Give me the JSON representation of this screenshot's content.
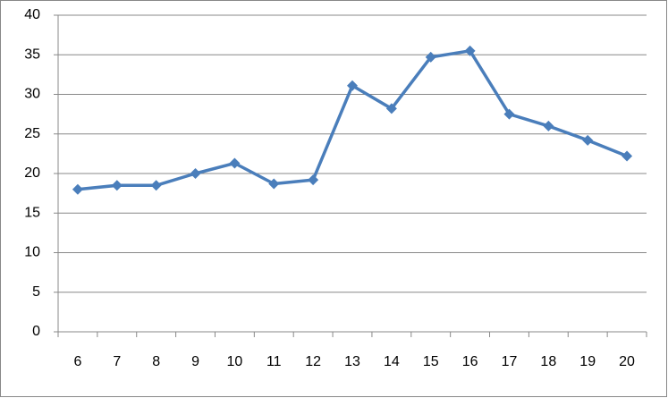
{
  "chart_data": {
    "type": "line",
    "categories": [
      "6",
      "7",
      "8",
      "9",
      "10",
      "11",
      "12",
      "13",
      "14",
      "15",
      "16",
      "17",
      "18",
      "19",
      "20"
    ],
    "series": [
      {
        "color": "#4a7ebb",
        "values": [
          18,
          18.5,
          18.5,
          20,
          21.3,
          18.7,
          19.2,
          31.1,
          28.2,
          34.7,
          35.5,
          27.5,
          26,
          24.2,
          22.2
        ]
      }
    ],
    "ylim": [
      0,
      40
    ],
    "yticks": [
      0,
      5,
      10,
      15,
      20,
      25,
      30,
      35,
      40
    ],
    "grid": true
  }
}
